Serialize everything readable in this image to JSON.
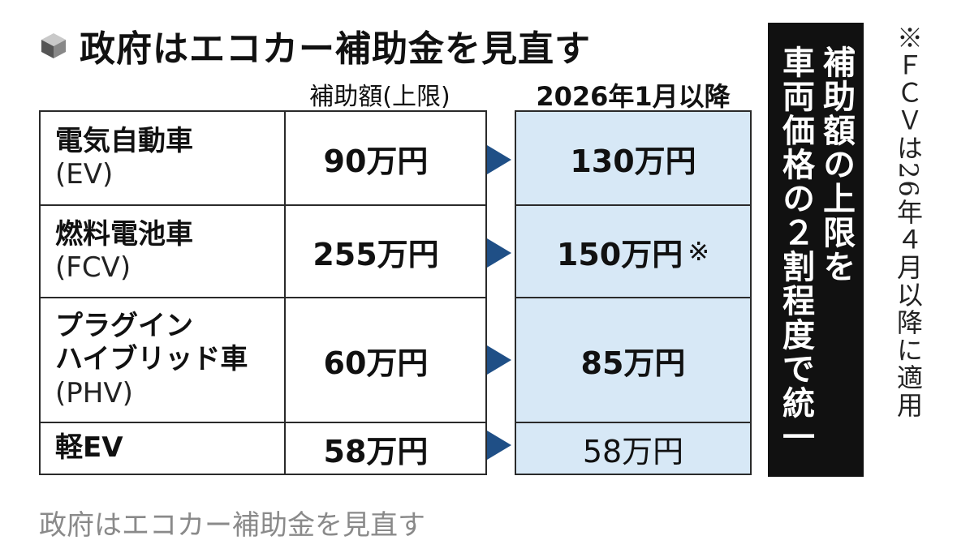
{
  "title": "政府はエコカー補助金を見直す",
  "title_icon": "cube-icon",
  "headers": {
    "current": "補助額(上限)",
    "new": "2026年1月以降"
  },
  "rows": [
    {
      "name": "電気自動車",
      "name2": "",
      "abbr": "(EV)",
      "current": "90万円",
      "new": "130万円",
      "note_mark": ""
    },
    {
      "name": "燃料電池車",
      "name2": "",
      "abbr": "(FCV)",
      "current": "255万円",
      "new": "150万円",
      "note_mark": "※"
    },
    {
      "name": "プラグイン",
      "name2": "ハイブリッド車",
      "abbr": "(PHV)",
      "current": "60万円",
      "new": "85万円",
      "note_mark": ""
    },
    {
      "name": "軽EV",
      "name2": "",
      "abbr": "",
      "current": "58万円",
      "new": "58万円",
      "note_mark": ""
    }
  ],
  "panel": {
    "line1": "補助額の上限を",
    "line2": "車両価格の２割程度で統一"
  },
  "note": "※ＦＣＶは26年４月以降に適用",
  "caption": "政府はエコカー補助金を見直す",
  "colors": {
    "new_column_bg": "#d7e8f6",
    "arrow": "#1f4f86",
    "panel_bg": "#111111",
    "caption": "#8a8a8a"
  }
}
